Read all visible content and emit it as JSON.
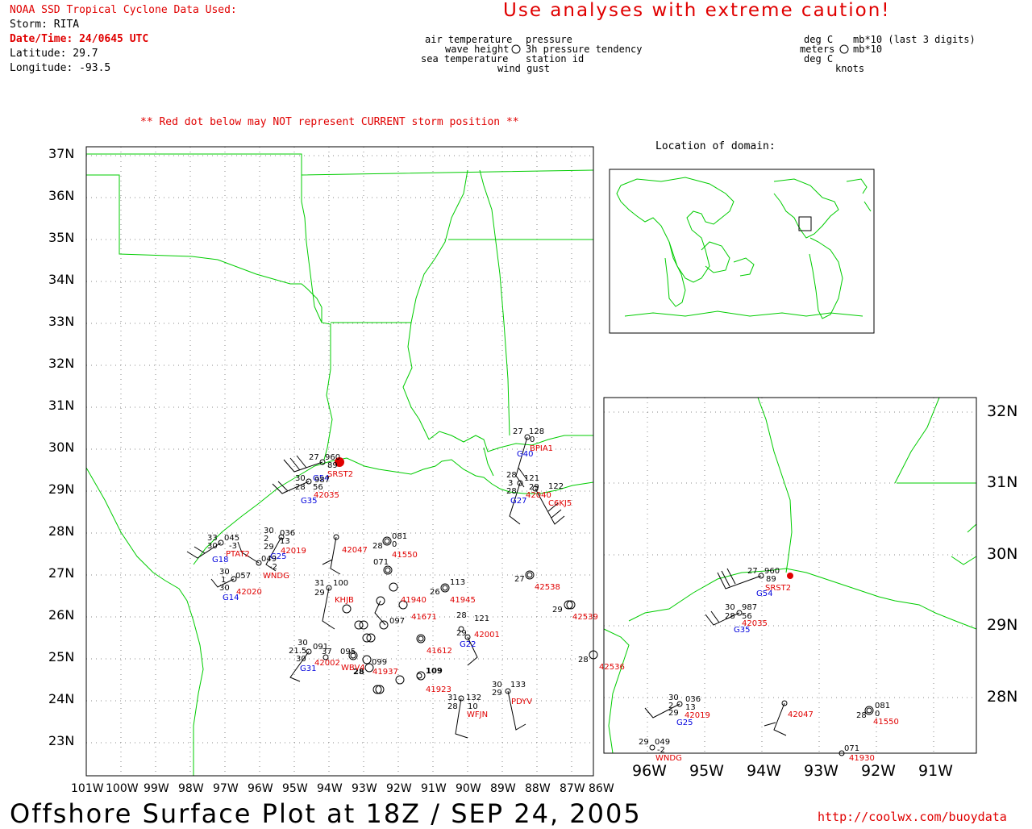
{
  "header": {
    "source": "NOAA SSD Tropical Cyclone Data Used:",
    "storm": "Storm: RITA",
    "datetime": "Date/Time: 24/0645 UTC",
    "latitude": "Latitude: 29.7",
    "longitude": "Longitude: -93.5",
    "caution": "Use analyses with extreme caution!",
    "red_dot_note": "** Red dot below may NOT represent CURRENT storm position **"
  },
  "legend": {
    "left": {
      "air_temperature": "air temperature",
      "wave_height": "wave height",
      "sea_temperature": "sea temperature",
      "wind_gust": "wind gust",
      "pressure": "pressure",
      "pressure_tendency": "3h pressure tendency",
      "station_id": "station id"
    },
    "right": {
      "deg_c_1": "deg C",
      "meters": "meters",
      "deg_c_2": "deg C",
      "mb": "mb*10 (last 3 digits)",
      "mb2": "mb*10",
      "knots": "knots"
    }
  },
  "inset": {
    "title": "Location of domain:"
  },
  "main_map": {
    "lat_ticks": [
      "37N",
      "36N",
      "35N",
      "34N",
      "33N",
      "32N",
      "31N",
      "30N",
      "29N",
      "28N",
      "27N",
      "26N",
      "25N",
      "24N",
      "23N"
    ],
    "lon_ticks": [
      "101W",
      "100W",
      "99W",
      "98W",
      "97W",
      "96W",
      "95W",
      "94W",
      "93W",
      "92W",
      "91W",
      "90W",
      "89W",
      "88W",
      "87W",
      "86W"
    ]
  },
  "zoom_map": {
    "lat_ticks": [
      "32N",
      "31N",
      "30N",
      "29N",
      "28N"
    ],
    "lon_ticks": [
      "96W",
      "95W",
      "94W",
      "93W",
      "92W",
      "91W"
    ]
  },
  "stations_main": [
    {
      "id": "SRST2",
      "obs": [
        "27",
        "960",
        "89"
      ],
      "gust": "G54"
    },
    {
      "id": "42035",
      "obs": [
        "30",
        "987",
        "28",
        "56"
      ],
      "gust": "G35"
    },
    {
      "id": "BPIA1",
      "obs": [
        "27",
        "128",
        "0"
      ],
      "gust": "G40"
    },
    {
      "id": "42040",
      "obs": [
        "28",
        "121",
        "3",
        "29",
        "28"
      ],
      "gust": "G27"
    },
    {
      "id": "C6KJ5",
      "obs": [
        "122"
      ],
      "gust": ""
    },
    {
      "id": "PTAT2",
      "obs": [
        "33",
        "045",
        "30",
        "-3"
      ],
      "gust": "G18"
    },
    {
      "id": "42019",
      "obs": [
        "30",
        "036",
        "2",
        "13",
        "29"
      ],
      "gust": "G25"
    },
    {
      "id": "WNDG",
      "obs": [
        "049",
        "-2"
      ],
      "gust": ""
    },
    {
      "id": "42020",
      "obs": [
        "30",
        "057",
        "1",
        "30"
      ],
      "gust": "G14"
    },
    {
      "id": "42047",
      "obs": [],
      "gust": ""
    },
    {
      "id": "41550",
      "obs": [
        "081",
        "28",
        "0"
      ],
      "gust": ""
    },
    {
      "id": "42538",
      "obs": [
        "27"
      ],
      "gust": ""
    },
    {
      "id": "41945",
      "obs": [
        "113",
        "26"
      ],
      "gust": ""
    },
    {
      "id": "KHJB",
      "obs": [
        "31",
        "100",
        "29"
      ],
      "gust": ""
    },
    {
      "id": "41940",
      "obs": [
        "071"
      ],
      "gust": ""
    },
    {
      "id": "41671",
      "obs": [
        "097"
      ],
      "gust": ""
    },
    {
      "id": "42001",
      "obs": [
        "28",
        "121",
        "29"
      ],
      "gust": "G22"
    },
    {
      "id": "41612",
      "obs": [],
      "gust": ""
    },
    {
      "id": "42002",
      "obs": [
        "30",
        "091",
        "21.5",
        "37",
        "30"
      ],
      "gust": "G31"
    },
    {
      "id": "WBV4",
      "obs": [
        "095",
        "099",
        "28"
      ],
      "gust": ""
    },
    {
      "id": "41937",
      "obs": [],
      "gust": ""
    },
    {
      "id": "41923",
      "obs": [
        "109"
      ],
      "gust": ""
    },
    {
      "id": "PDYV",
      "obs": [
        "30",
        "133",
        "29"
      ],
      "gust": ""
    },
    {
      "id": "WFJN",
      "obs": [
        "31",
        "132",
        "28",
        "10"
      ],
      "gust": ""
    },
    {
      "id": "42536",
      "obs": [
        "28"
      ],
      "gust": ""
    },
    {
      "id": "42539",
      "obs": [
        "29"
      ],
      "gust": ""
    }
  ],
  "stations_zoom": [
    {
      "id": "SRST2",
      "obs": [
        "27",
        "960",
        "89"
      ],
      "gust": "G54"
    },
    {
      "id": "42035",
      "obs": [
        "30",
        "987",
        "28",
        "56"
      ],
      "gust": "G35"
    },
    {
      "id": "42019",
      "obs": [
        "30",
        "036",
        "2",
        "13",
        "29"
      ],
      "gust": "G25"
    },
    {
      "id": "42047",
      "obs": [],
      "gust": ""
    },
    {
      "id": "41550",
      "obs": [
        "081",
        "28",
        "0"
      ],
      "gust": ""
    },
    {
      "id": "WNDG",
      "obs": [
        "29",
        "049",
        "-2"
      ],
      "gust": ""
    },
    {
      "id": "41930",
      "obs": [
        "071"
      ],
      "gust": ""
    }
  ],
  "footer": {
    "title": "Offshore Surface Plot at 18Z / SEP 24, 2005",
    "url": "http://coolwx.com/buoydata"
  },
  "colors": {
    "coast": "#00cc00",
    "text_red": "#e00000",
    "text_blue": "#0000dd",
    "grid": "#888888"
  }
}
